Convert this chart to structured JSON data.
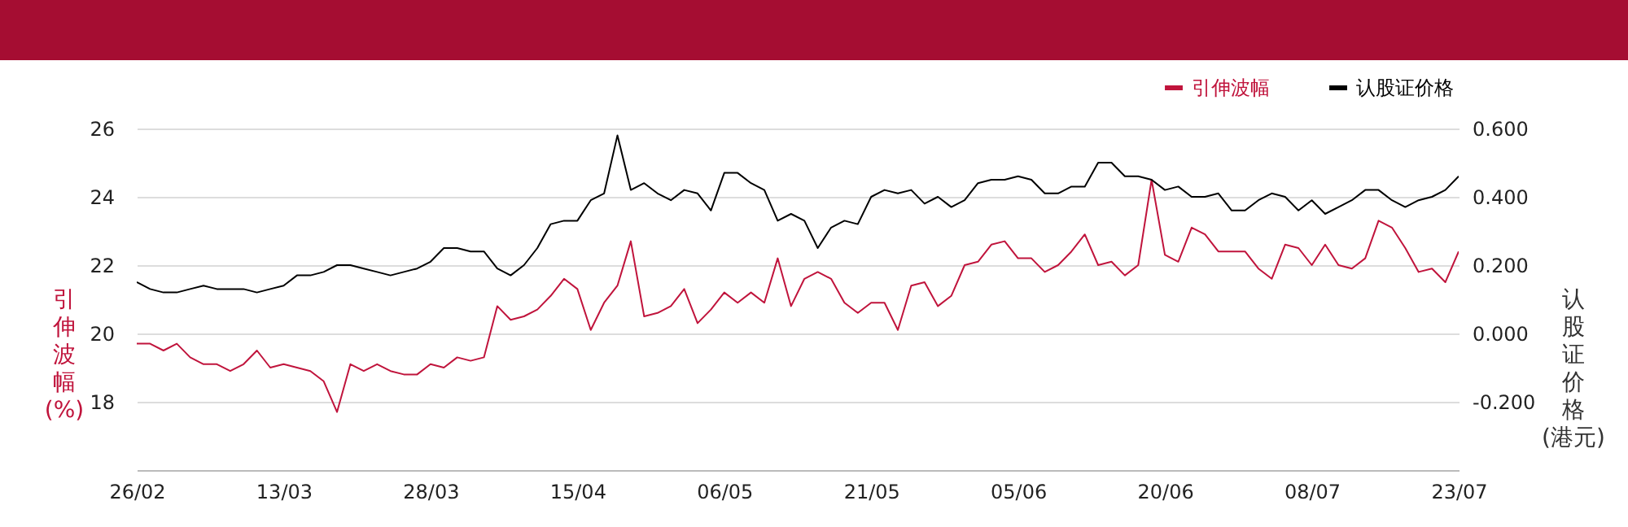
{
  "chart_data": {
    "type": "line",
    "categories": [
      "26/02",
      null,
      null,
      null,
      null,
      null,
      null,
      null,
      null,
      null,
      null,
      "13/03",
      null,
      null,
      null,
      null,
      null,
      null,
      null,
      null,
      null,
      null,
      "28/03",
      null,
      null,
      null,
      null,
      null,
      null,
      null,
      null,
      null,
      null,
      "15/04",
      null,
      null,
      null,
      null,
      null,
      null,
      null,
      null,
      null,
      null,
      "06/05",
      null,
      null,
      null,
      null,
      null,
      null,
      null,
      null,
      null,
      null,
      "21/05",
      null,
      null,
      null,
      null,
      null,
      null,
      null,
      null,
      null,
      null,
      "05/06",
      null,
      null,
      null,
      null,
      null,
      null,
      null,
      null,
      null,
      null,
      "20/06",
      null,
      null,
      null,
      null,
      null,
      null,
      null,
      null,
      null,
      null,
      "08/07",
      null,
      null,
      null,
      null,
      null,
      null,
      null,
      null,
      null,
      null,
      "23/07"
    ],
    "series": [
      {
        "name": "引伸波幅",
        "color": "#c0143c",
        "values": [
          19.7,
          19.7,
          19.5,
          19.7,
          19.3,
          19.1,
          19.1,
          18.9,
          19.1,
          19.5,
          19.0,
          19.1,
          19.0,
          18.9,
          18.6,
          17.7,
          19.1,
          18.9,
          19.1,
          18.9,
          18.8,
          18.8,
          19.1,
          19.0,
          19.3,
          19.2,
          19.3,
          20.8,
          20.4,
          20.5,
          20.7,
          21.1,
          21.6,
          21.3,
          20.1,
          20.9,
          21.4,
          22.7,
          20.5,
          20.6,
          20.8,
          21.3,
          20.3,
          20.7,
          21.2,
          20.9,
          21.2,
          20.9,
          22.2,
          20.8,
          21.6,
          21.8,
          21.6,
          20.9,
          20.6,
          20.9,
          20.9,
          20.1,
          21.4,
          21.5,
          20.8,
          21.1,
          22.0,
          22.1,
          22.6,
          22.7,
          22.2,
          22.2,
          21.8,
          22.0,
          22.4,
          22.9,
          22.0,
          22.1,
          21.7,
          22.0,
          24.5,
          22.3,
          22.1,
          23.1,
          22.9,
          22.4,
          22.4,
          22.4,
          21.9,
          21.6,
          22.6,
          22.5,
          22.0,
          22.6,
          22.0,
          21.9,
          22.2,
          23.3,
          23.1,
          22.5,
          21.8,
          21.9,
          21.5,
          22.4
        ]
      },
      {
        "name": "认股证价格",
        "color": "#000000",
        "axis": "y2",
        "values": [
          0.15,
          0.13,
          0.12,
          0.12,
          0.13,
          0.14,
          0.13,
          0.13,
          0.13,
          0.12,
          0.13,
          0.14,
          0.17,
          0.17,
          0.18,
          0.2,
          0.2,
          0.19,
          0.18,
          0.17,
          0.18,
          0.19,
          0.21,
          0.25,
          0.25,
          0.24,
          0.24,
          0.19,
          0.17,
          0.2,
          0.25,
          0.32,
          0.33,
          0.33,
          0.39,
          0.41,
          0.58,
          0.42,
          0.44,
          0.41,
          0.39,
          0.42,
          0.41,
          0.36,
          0.47,
          0.47,
          0.44,
          0.42,
          0.33,
          0.35,
          0.33,
          0.25,
          0.31,
          0.33,
          0.32,
          0.4,
          0.42,
          0.41,
          0.42,
          0.38,
          0.4,
          0.37,
          0.39,
          0.44,
          0.45,
          0.45,
          0.46,
          0.45,
          0.41,
          0.41,
          0.43,
          0.43,
          0.5,
          0.5,
          0.46,
          0.46,
          0.45,
          0.42,
          0.43,
          0.4,
          0.4,
          0.41,
          0.36,
          0.36,
          0.39,
          0.41,
          0.4,
          0.36,
          0.39,
          0.35,
          0.37,
          0.39,
          0.42,
          0.42,
          0.39,
          0.37,
          0.39,
          0.4,
          0.42,
          0.46
        ]
      }
    ],
    "ylabel": "引伸波幅 (%)",
    "y2label": "认股证价格 (港元)",
    "ylim": [
      16,
      26
    ],
    "yticks": [
      18,
      20,
      22,
      24,
      26
    ],
    "y2lim": [
      -0.4,
      0.6
    ],
    "y2ticks": [
      {
        "value": -0.2,
        "label": "-0.200"
      },
      {
        "value": 0,
        "label": "0.000"
      },
      {
        "value": 0.2,
        "label": "0.200"
      },
      {
        "value": 0.4,
        "label": "0.400"
      },
      {
        "value": 0.6,
        "label": "0.600"
      }
    ],
    "grid": "y",
    "legend": "top right"
  }
}
